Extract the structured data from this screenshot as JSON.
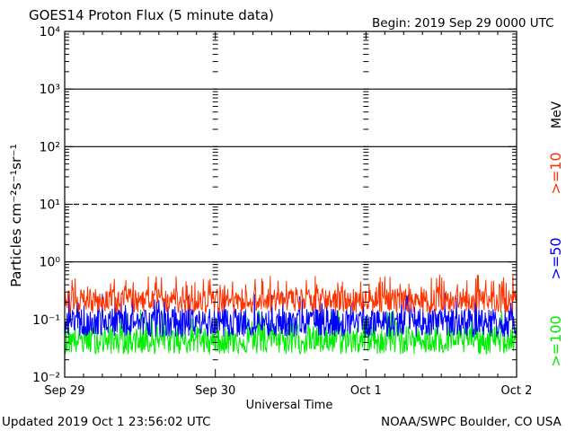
{
  "header": {
    "title": "GOES14 Proton Flux (5 minute data)",
    "begin": "Begin: 2019 Sep 29 0000 UTC"
  },
  "footer": {
    "updated": "Updated 2019 Oct  1 23:56:02 UTC",
    "credit": "NOAA/SWPC Boulder, CO USA"
  },
  "chart_data": {
    "type": "line",
    "title": "GOES14 Proton Flux (5 minute data)",
    "xlabel": "Universal Time",
    "ylabel": "Particles cm⁻²s⁻¹sr⁻¹",
    "y_scale": "log",
    "ylim": [
      0.01,
      10000
    ],
    "x_range_days": [
      0,
      3
    ],
    "x_ticks": [
      {
        "day": 0,
        "label": "Sep 29"
      },
      {
        "day": 1,
        "label": "Sep 30"
      },
      {
        "day": 2,
        "label": "Oct 1"
      },
      {
        "day": 3,
        "label": "Oct 2"
      }
    ],
    "y_ticks": [
      {
        "exp": -2,
        "label": "10⁻²"
      },
      {
        "exp": -1,
        "label": "10⁻¹"
      },
      {
        "exp": 0,
        "label": "10⁰"
      },
      {
        "exp": 1,
        "label": "10¹"
      },
      {
        "exp": 2,
        "label": "10²"
      },
      {
        "exp": 3,
        "label": "10³"
      },
      {
        "exp": 4,
        "label": "10⁴"
      }
    ],
    "thresholds": [
      {
        "value": 1,
        "style": "solid"
      },
      {
        "value": 10,
        "style": "dashed"
      },
      {
        "value": 100,
        "style": "solid"
      },
      {
        "value": 1000,
        "style": "solid"
      }
    ],
    "unit_label": "MeV",
    "series": [
      {
        "name": ">=10",
        "color": "#ff3300",
        "min": 0.13,
        "max": 0.6,
        "typical": 0.22
      },
      {
        "name": ">=50",
        "color": "#0000ff",
        "min": 0.05,
        "max": 0.3,
        "typical": 0.09
      },
      {
        "name": ">=100",
        "color": "#00ee00",
        "min": 0.025,
        "max": 0.15,
        "typical": 0.045
      }
    ],
    "samples": 864
  }
}
